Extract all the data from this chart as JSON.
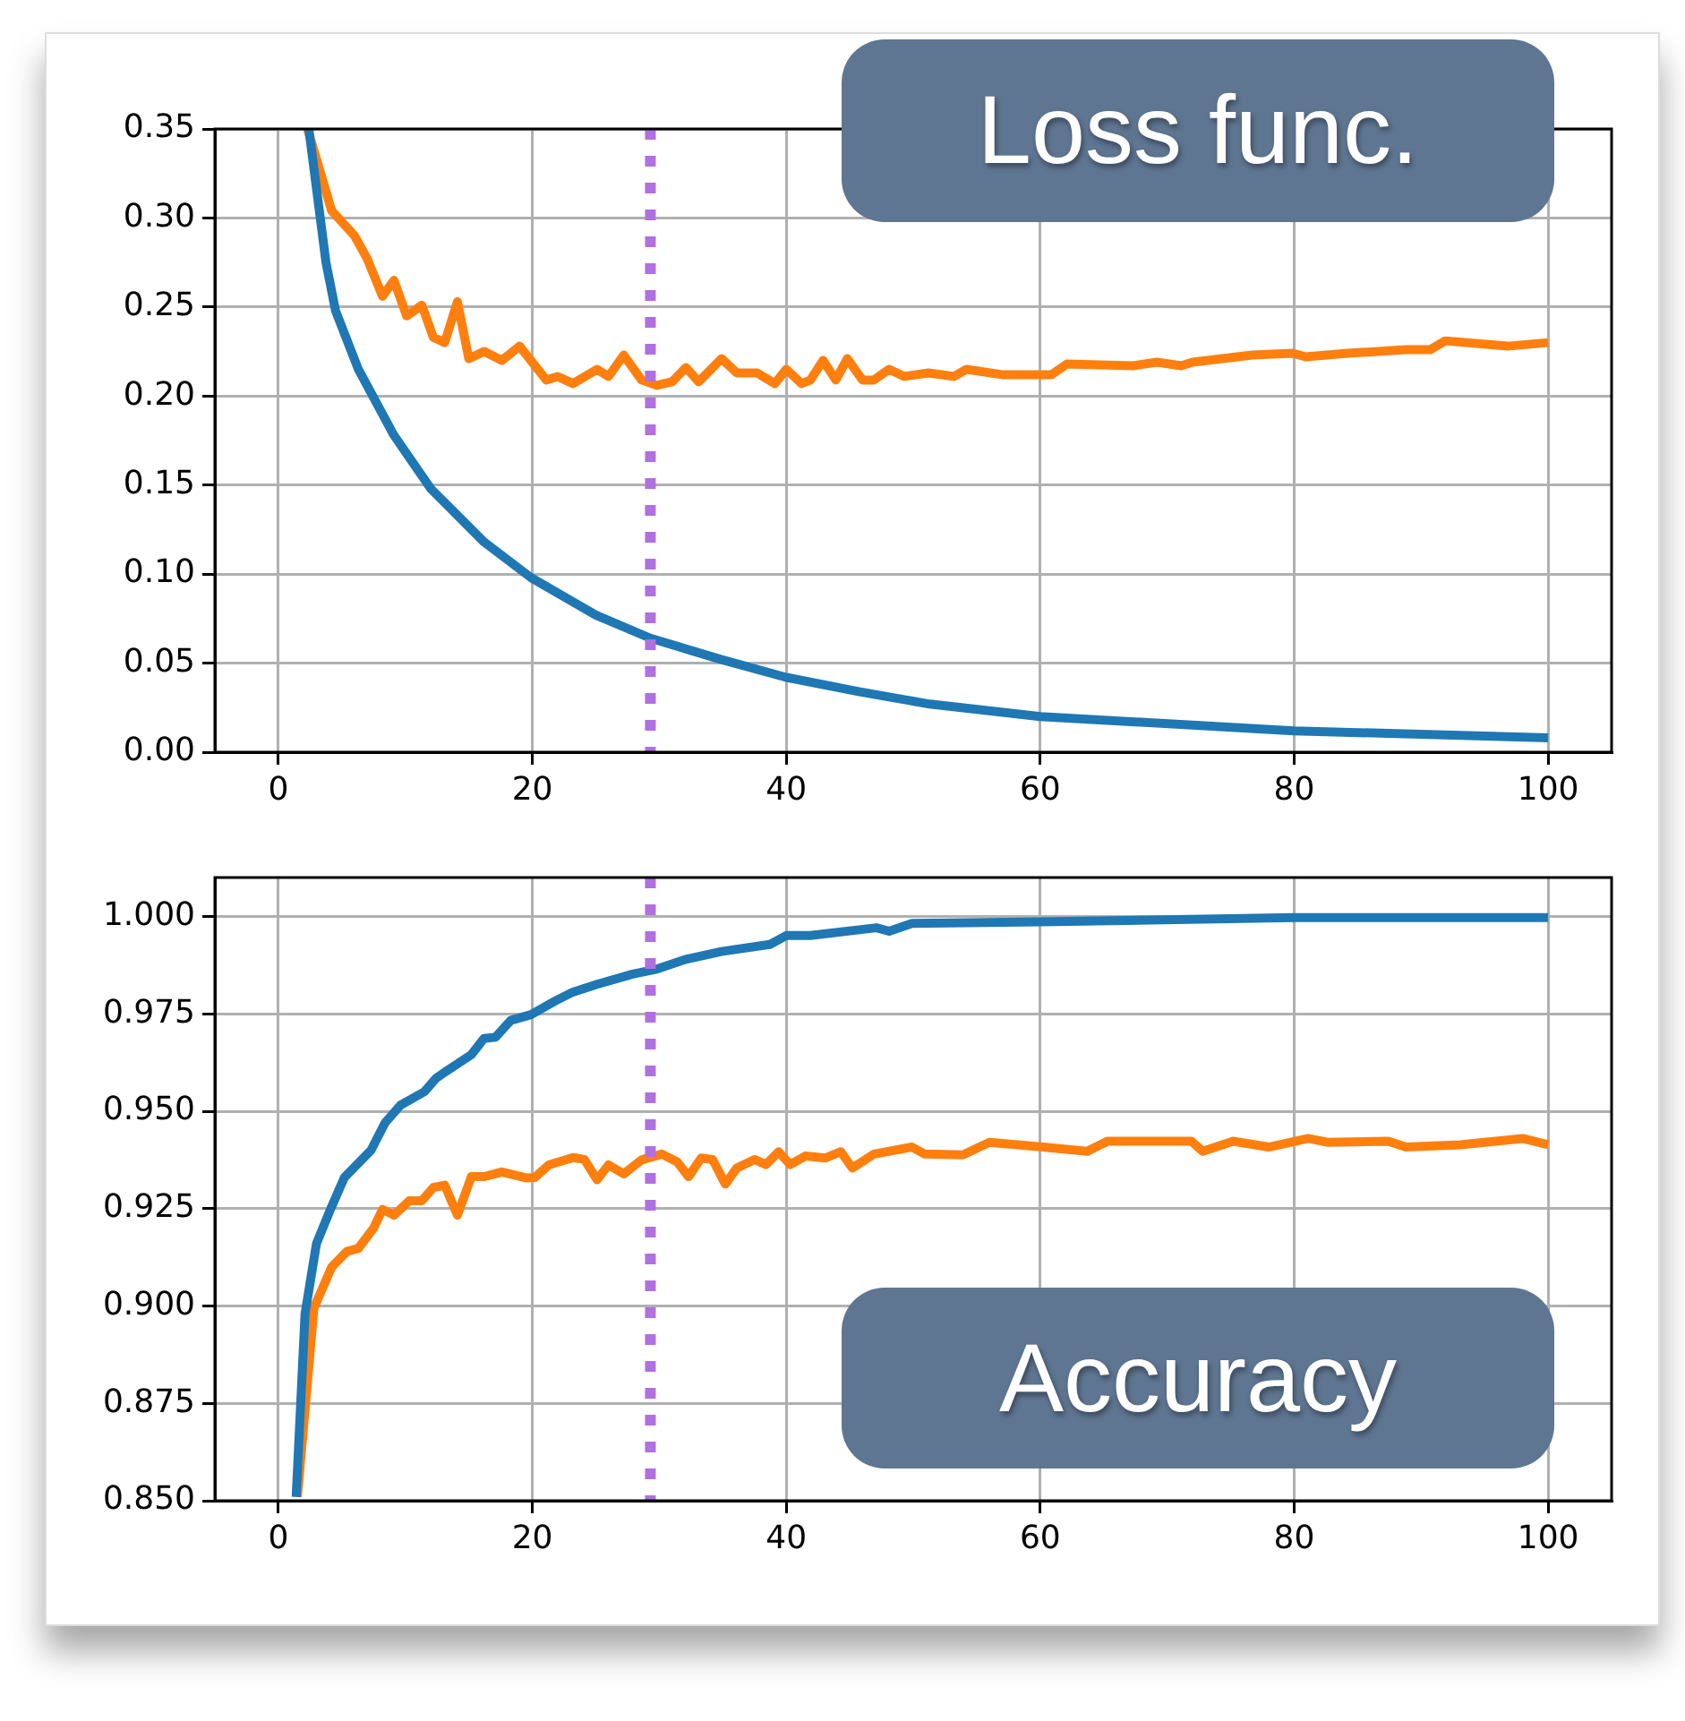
{
  "chart_data": [
    {
      "type": "line",
      "annotations": [
        "Loss func."
      ],
      "xlim": [
        -5,
        105
      ],
      "xticks": [
        0,
        20,
        40,
        60,
        80,
        100
      ],
      "ylim": [
        0,
        0.35
      ],
      "yticks": [
        {
          "value": 0,
          "label": "0.00"
        },
        {
          "value": 0.05,
          "label": "0.05"
        },
        {
          "value": 0.1,
          "label": "0.10"
        },
        {
          "value": 0.15,
          "label": "0.15"
        },
        {
          "value": 0.2,
          "label": "0.20"
        },
        {
          "value": 0.25,
          "label": "0.25"
        },
        {
          "value": 0.3,
          "label": "0.30"
        },
        {
          "value": 0.35,
          "label": "0.35"
        }
      ],
      "grid": true,
      "legend": false,
      "line_style": "solid",
      "ref_lines": [
        {
          "axis": "x",
          "value": 29.3,
          "color": "#b070e0",
          "line_style": "dotted"
        }
      ],
      "series": [
        {
          "color": "#1f77b4",
          "x": [
            2.4,
            3.75,
            4.5,
            6.3,
            9.1,
            12,
            16.2,
            19.9,
            25,
            29.3,
            34.9,
            40,
            45.7,
            51.3,
            60,
            80,
            100
          ],
          "values": [
            0.35,
            0.275,
            0.248,
            0.215,
            0.178,
            0.148,
            0.118,
            0.098,
            0.077,
            0.064,
            0.052,
            0.042,
            0.034,
            0.027,
            0.02,
            0.012,
            0.008
          ]
        },
        {
          "color": "#ff7f0e",
          "x": [
            2.3,
            4.2,
            6,
            7,
            8.2,
            9.1,
            10.1,
            11.3,
            12.2,
            13.1,
            14.1,
            15,
            16.2,
            17.6,
            19,
            21.1,
            22,
            23.2,
            25.1,
            26,
            27.2,
            28.6,
            29.8,
            31,
            32.1,
            33.1,
            34.9,
            36.1,
            37.7,
            39.1,
            40,
            41.2,
            41.9,
            42.9,
            43.9,
            44.8,
            46,
            46.9,
            48.1,
            49.3,
            51.2,
            53.2,
            54.2,
            57,
            60.9,
            62.1,
            67.3,
            69.2,
            71.1,
            72,
            76.7,
            79.9,
            80.9,
            84.2,
            88.8,
            90.7,
            91.9,
            96.8,
            100
          ],
          "values": [
            0.35,
            0.304,
            0.29,
            0.277,
            0.256,
            0.265,
            0.245,
            0.251,
            0.233,
            0.23,
            0.253,
            0.221,
            0.225,
            0.22,
            0.228,
            0.209,
            0.211,
            0.207,
            0.215,
            0.211,
            0.223,
            0.209,
            0.206,
            0.208,
            0.216,
            0.208,
            0.221,
            0.213,
            0.213,
            0.207,
            0.215,
            0.207,
            0.209,
            0.22,
            0.209,
            0.221,
            0.209,
            0.209,
            0.215,
            0.211,
            0.213,
            0.211,
            0.215,
            0.212,
            0.212,
            0.218,
            0.217,
            0.219,
            0.217,
            0.219,
            0.223,
            0.224,
            0.222,
            0.224,
            0.226,
            0.226,
            0.231,
            0.228,
            0.23
          ]
        }
      ]
    },
    {
      "type": "line",
      "annotations": [
        "Accuracy"
      ],
      "xlim": [
        -5,
        105
      ],
      "xticks": [
        0,
        20,
        40,
        60,
        80,
        100
      ],
      "ylim": [
        0.85,
        1.01
      ],
      "yticks": [
        {
          "value": 0.85,
          "label": "0.850"
        },
        {
          "value": 0.875,
          "label": "0.875"
        },
        {
          "value": 0.9,
          "label": "0.900"
        },
        {
          "value": 0.925,
          "label": "0.925"
        },
        {
          "value": 0.95,
          "label": "0.950"
        },
        {
          "value": 0.975,
          "label": "0.975"
        },
        {
          "value": 1.0,
          "label": "1.000"
        }
      ],
      "grid": true,
      "legend": false,
      "line_style": "solid",
      "ref_lines": [
        {
          "axis": "x",
          "value": 29.3,
          "color": "#b070e0",
          "line_style": "dotted"
        }
      ],
      "series": [
        {
          "color": "#1f77b4",
          "x": [
            1.4,
            2.1,
            3,
            4,
            5.2,
            7.3,
            8.4,
            9.6,
            11.5,
            12.4,
            13.1,
            15.2,
            16.2,
            17.1,
            18.3,
            19.9,
            21.8,
            23.2,
            25.1,
            27.9,
            29.7,
            32.1,
            34.9,
            38.7,
            40,
            41.9,
            47.1,
            48.1,
            49.9,
            60,
            80,
            100
          ],
          "values": [
            0.851,
            0.898,
            0.916,
            0.924,
            0.933,
            0.94,
            0.947,
            0.9515,
            0.955,
            0.9584,
            0.96,
            0.9645,
            0.9687,
            0.969,
            0.9733,
            0.9748,
            0.9783,
            0.9806,
            0.9826,
            0.9852,
            0.9864,
            0.989,
            0.991,
            0.9928,
            0.9951,
            0.9951,
            0.9971,
            0.9962,
            0.9982,
            0.9986,
            0.9997,
            0.9997
          ]
        },
        {
          "color": "#ff7f0e",
          "x": [
            1.5,
            2.8,
            4.2,
            5.4,
            6.3,
            7.5,
            8.2,
            9.1,
            10.3,
            11.3,
            12.2,
            13.1,
            14.1,
            15.2,
            16.2,
            17.6,
            19.5,
            20.2,
            21.3,
            23.2,
            24.1,
            25.1,
            26,
            27.2,
            28.6,
            30.2,
            31.4,
            32.3,
            33.3,
            34.2,
            35.2,
            36.1,
            37.5,
            38.4,
            39.4,
            40.3,
            41.5,
            43.1,
            44.3,
            45.2,
            46.9,
            49.9,
            50.9,
            53.9,
            56,
            60.2,
            63.7,
            65.3,
            71.9,
            72.8,
            75.2,
            78,
            81.1,
            82.7,
            87.4,
            88.8,
            93.1,
            98,
            100
          ],
          "values": [
            0.851,
            0.8995,
            0.91,
            0.914,
            0.9148,
            0.92,
            0.9248,
            0.9233,
            0.927,
            0.927,
            0.9304,
            0.931,
            0.9233,
            0.9332,
            0.9332,
            0.9344,
            0.9329,
            0.933,
            0.9362,
            0.9381,
            0.9376,
            0.9324,
            0.9362,
            0.9339,
            0.9375,
            0.939,
            0.937,
            0.9332,
            0.938,
            0.9376,
            0.9313,
            0.9354,
            0.9376,
            0.9363,
            0.9396,
            0.9363,
            0.9385,
            0.938,
            0.9396,
            0.9354,
            0.939,
            0.9408,
            0.939,
            0.9388,
            0.942,
            0.9408,
            0.9397,
            0.9423,
            0.9423,
            0.9397,
            0.9423,
            0.9408,
            0.943,
            0.942,
            0.9423,
            0.9408,
            0.9414,
            0.943,
            0.9414
          ]
        }
      ]
    }
  ]
}
